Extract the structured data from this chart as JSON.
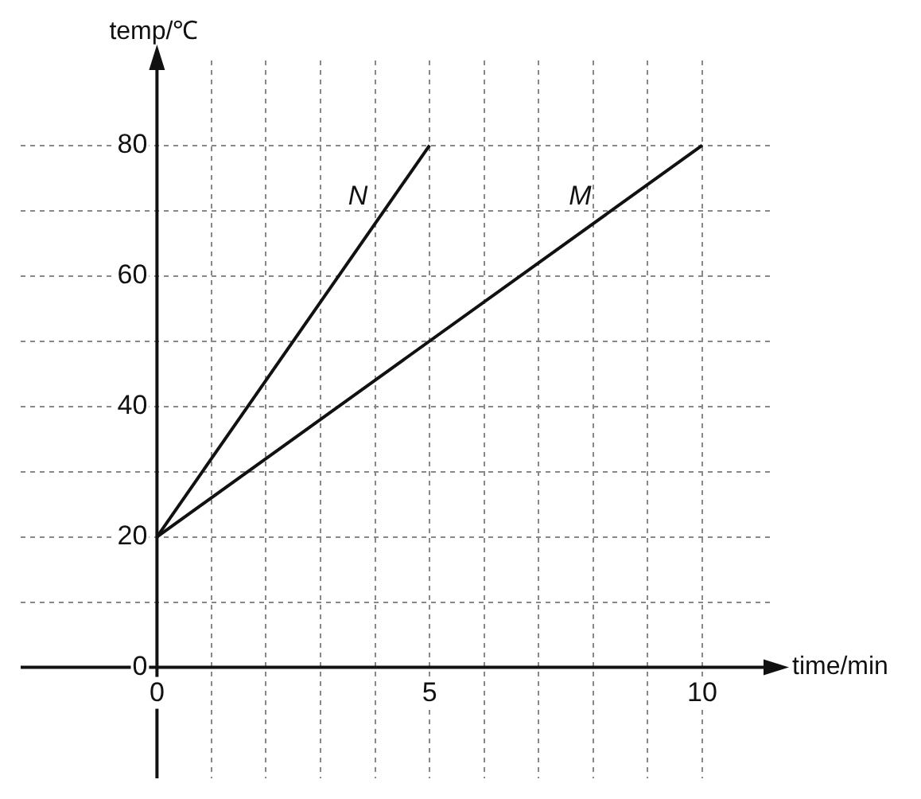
{
  "chart_data": {
    "type": "line",
    "xlabel": "time/min",
    "ylabel": "temp/℃",
    "xlim": [
      -2.5,
      11.3
    ],
    "ylim": [
      -17,
      93
    ],
    "xticks": [
      0,
      {
        "value": 1,
        "label": null
      },
      {
        "value": 2,
        "label": null
      },
      {
        "value": 3,
        "label": null
      },
      {
        "value": 4,
        "label": null
      },
      5,
      {
        "value": 6,
        "label": null
      },
      {
        "value": 7,
        "label": null
      },
      {
        "value": 8,
        "label": null
      },
      {
        "value": 9,
        "label": null
      },
      10
    ],
    "yticks": [
      0,
      {
        "value": 10,
        "label": null
      },
      20,
      {
        "value": 30,
        "label": null
      },
      40,
      {
        "value": 50,
        "label": null
      },
      60,
      {
        "value": 70,
        "label": null
      },
      80
    ],
    "grid": true,
    "line_style": "solid",
    "marker": "none",
    "legend": false,
    "series": [
      {
        "name": "N",
        "color": "#111111",
        "x": [
          0,
          5
        ],
        "values": [
          20,
          80
        ]
      },
      {
        "name": "M",
        "color": "#111111",
        "x": [
          0,
          10
        ],
        "values": [
          20,
          80
        ]
      }
    ]
  }
}
